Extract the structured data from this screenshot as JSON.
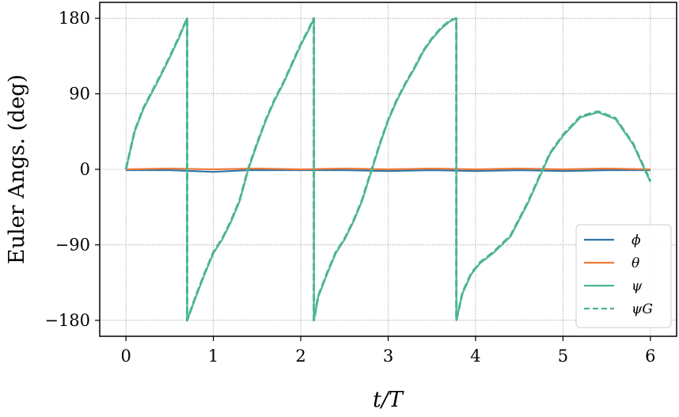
{
  "chart_data": {
    "type": "line",
    "xlabel": "t/T",
    "ylabel": "Euler Angs. (deg)",
    "xlim": [
      -0.3,
      6.3
    ],
    "ylim": [
      -199,
      199
    ],
    "xticks": [
      0,
      1,
      2,
      3,
      4,
      5,
      6
    ],
    "yticks": [
      180,
      90,
      0,
      -90,
      -180
    ],
    "ytick_labels": [
      "180",
      "90",
      "0",
      "−90",
      "−180"
    ],
    "grid": true,
    "legend_position": "lower-right",
    "colors": {
      "phi": "#2e75a6",
      "theta": "#f07a3a",
      "psi": "#4cb58f",
      "psiG": "#4cb58f"
    },
    "series": [
      {
        "name": "ϕ",
        "key": "phi",
        "style": "solid",
        "x": [
          0,
          0.5,
          1.0,
          1.4,
          2.0,
          2.5,
          3.0,
          3.5,
          4.0,
          4.5,
          5.0,
          5.5,
          6.0
        ],
        "y": [
          -1,
          -1,
          -3,
          -1,
          -1,
          -1,
          -2,
          -1,
          -2,
          -1,
          -2,
          -1,
          -1
        ]
      },
      {
        "name": "θ",
        "key": "theta",
        "style": "solid",
        "x": [
          0,
          0.5,
          1.0,
          1.5,
          2.0,
          2.5,
          3.0,
          3.5,
          4.0,
          4.5,
          5.0,
          5.5,
          6.0
        ],
        "y": [
          0,
          1,
          0,
          1,
          0,
          1,
          0,
          1,
          0,
          1,
          0,
          1,
          0
        ]
      },
      {
        "name": "ψ",
        "key": "psi",
        "style": "solid",
        "x": [
          0,
          0.1,
          0.2,
          0.3,
          0.4,
          0.5,
          0.6,
          0.7,
          0.7,
          0.8,
          0.9,
          1.0,
          1.1,
          1.2,
          1.3,
          1.4,
          1.5,
          1.6,
          1.7,
          1.8,
          1.9,
          2.0,
          2.1,
          2.15,
          2.15,
          2.2,
          2.3,
          2.4,
          2.5,
          2.6,
          2.7,
          2.8,
          2.9,
          3.0,
          3.1,
          3.2,
          3.3,
          3.4,
          3.5,
          3.6,
          3.7,
          3.78,
          3.78,
          3.85,
          3.95,
          4.05,
          4.2,
          4.4,
          4.6,
          4.75,
          4.85,
          5.0,
          5.2,
          5.4,
          5.6,
          5.8,
          6.0
        ],
        "y": [
          0,
          45,
          72,
          92,
          112,
          133,
          155,
          180,
          -180,
          -152,
          -125,
          -100,
          -84,
          -63,
          -38,
          0,
          30,
          58,
          82,
          102,
          125,
          148,
          168,
          180,
          -180,
          -152,
          -125,
          -100,
          -84,
          -63,
          -38,
          -5,
          28,
          58,
          82,
          102,
          120,
          140,
          155,
          167,
          176,
          180,
          -180,
          -148,
          -125,
          -112,
          -100,
          -80,
          -40,
          -5,
          18,
          40,
          62,
          68,
          60,
          30,
          -15
        ]
      },
      {
        "name": "ψG",
        "key": "psiG",
        "style": "dashed",
        "x": [
          0,
          0.1,
          0.2,
          0.3,
          0.4,
          0.5,
          0.6,
          0.7,
          0.7,
          0.8,
          0.9,
          1.0,
          1.1,
          1.2,
          1.3,
          1.4,
          1.5,
          1.6,
          1.7,
          1.8,
          1.9,
          2.0,
          2.1,
          2.15,
          2.15,
          2.2,
          2.3,
          2.4,
          2.5,
          2.6,
          2.7,
          2.8,
          2.9,
          3.0,
          3.1,
          3.2,
          3.3,
          3.4,
          3.5,
          3.6,
          3.7,
          3.78,
          3.78,
          3.85,
          3.95,
          4.05,
          4.2,
          4.4,
          4.6,
          4.75,
          4.85,
          5.0,
          5.2,
          5.4,
          5.6,
          5.8,
          6.0
        ],
        "y": [
          0,
          46,
          73,
          93,
          113,
          134,
          156,
          180,
          -180,
          -151,
          -124,
          -99,
          -83,
          -62,
          -37,
          1,
          31,
          59,
          83,
          103,
          126,
          149,
          169,
          180,
          -180,
          -151,
          -124,
          -99,
          -83,
          -62,
          -37,
          -4,
          29,
          59,
          83,
          103,
          121,
          141,
          156,
          168,
          177,
          180,
          -180,
          -147,
          -124,
          -111,
          -99,
          -79,
          -39,
          -4,
          19,
          41,
          63,
          69,
          61,
          31,
          -14
        ]
      }
    ]
  },
  "legend": [
    {
      "label": "ϕ",
      "key": "phi"
    },
    {
      "label": "θ",
      "key": "theta"
    },
    {
      "label": "ψ",
      "key": "psi"
    },
    {
      "label": "ψG",
      "key": "psiG"
    }
  ]
}
